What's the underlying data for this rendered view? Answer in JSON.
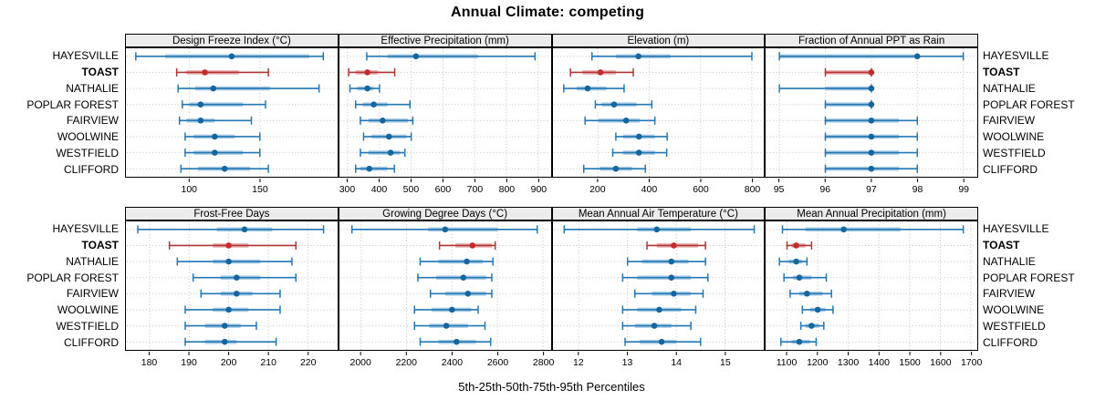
{
  "title": "Annual Climate: competing",
  "caption": "5th-25th-50th-75th-95th Percentiles",
  "locations": [
    "HAYESVILLE",
    "TOAST",
    "NATHALIE",
    "POPLAR FOREST",
    "FAIRVIEW",
    "WOOLWINE",
    "WESTFIELD",
    "CLIFFORD"
  ],
  "highlight_location": "TOAST",
  "percentile_labels": [
    "5th",
    "25th",
    "50th",
    "75th",
    "95th"
  ],
  "colors": {
    "line": "#2277b4",
    "band": "#a9cce4",
    "dot": "#15669f",
    "highlight_line": "#b23535",
    "highlight_band": "#e9aeae",
    "highlight_dot": "#c42b2b",
    "strip_bg": "#ececec",
    "grid": "#c3c3c3",
    "border": "#000000"
  },
  "chart_data": [
    {
      "type": "scatter",
      "representation": "percentile-intervals",
      "row": 0,
      "title": "Design Freeze Index (°C)",
      "xlim": [
        55,
        205
      ],
      "ticks": [
        100,
        150
      ],
      "series": [
        {
          "name": "HAYESVILLE",
          "values": [
            62,
            83,
            130,
            185,
            195
          ]
        },
        {
          "name": "TOAST",
          "values": [
            91,
            98,
            111,
            135,
            156
          ]
        },
        {
          "name": "NATHALIE",
          "values": [
            92,
            104,
            117,
            157,
            192
          ]
        },
        {
          "name": "POPLAR FOREST",
          "values": [
            95,
            100,
            108,
            138,
            154
          ]
        },
        {
          "name": "FAIRVIEW",
          "values": [
            93,
            98,
            108,
            118,
            144
          ]
        },
        {
          "name": "WOOLWINE",
          "values": [
            97,
            103,
            118,
            132,
            150
          ]
        },
        {
          "name": "WESTFIELD",
          "values": [
            97,
            103,
            118,
            138,
            150
          ]
        },
        {
          "name": "CLIFFORD",
          "values": [
            94,
            106,
            125,
            143,
            156
          ]
        }
      ]
    },
    {
      "type": "scatter",
      "representation": "percentile-intervals",
      "row": 0,
      "title": "Effective Precipitation (mm)",
      "xlim": [
        274,
        940
      ],
      "ticks": [
        300,
        400,
        500,
        600,
        700,
        800,
        900
      ],
      "series": [
        {
          "name": "HAYESVILLE",
          "values": [
            360,
            425,
            515,
            710,
            890
          ]
        },
        {
          "name": "TOAST",
          "values": [
            303,
            325,
            362,
            395,
            448
          ]
        },
        {
          "name": "NATHALIE",
          "values": [
            307,
            330,
            362,
            382,
            400
          ]
        },
        {
          "name": "POPLAR FOREST",
          "values": [
            325,
            347,
            382,
            425,
            496
          ]
        },
        {
          "name": "FAIRVIEW",
          "values": [
            340,
            365,
            410,
            490,
            505
          ]
        },
        {
          "name": "WOOLWINE",
          "values": [
            350,
            375,
            430,
            485,
            500
          ]
        },
        {
          "name": "WESTFIELD",
          "values": [
            340,
            365,
            435,
            465,
            480
          ]
        },
        {
          "name": "CLIFFORD",
          "values": [
            325,
            340,
            368,
            425,
            447
          ]
        }
      ]
    },
    {
      "type": "scatter",
      "representation": "percentile-intervals",
      "row": 0,
      "title": "Elevation (m)",
      "xlim": [
        25,
        849
      ],
      "ticks": [
        200,
        400,
        600,
        800
      ],
      "series": [
        {
          "name": "HAYESVILLE",
          "values": [
            177,
            270,
            358,
            483,
            800
          ]
        },
        {
          "name": "TOAST",
          "values": [
            93,
            140,
            210,
            270,
            338
          ]
        },
        {
          "name": "NATHALIE",
          "values": [
            67,
            118,
            160,
            233,
            302
          ]
        },
        {
          "name": "POPLAR FOREST",
          "values": [
            190,
            215,
            263,
            350,
            410
          ]
        },
        {
          "name": "FAIRVIEW",
          "values": [
            150,
            202,
            310,
            363,
            422
          ]
        },
        {
          "name": "WOOLWINE",
          "values": [
            270,
            298,
            360,
            422,
            470
          ]
        },
        {
          "name": "WESTFIELD",
          "values": [
            258,
            298,
            360,
            422,
            468
          ]
        },
        {
          "name": "CLIFFORD",
          "values": [
            145,
            208,
            270,
            333,
            385
          ]
        }
      ]
    },
    {
      "type": "scatter",
      "representation": "percentile-intervals",
      "row": 0,
      "title": "Fraction of Annual PPT as Rain",
      "xlim": [
        94.7,
        99.3
      ],
      "ticks": [
        95,
        96,
        97,
        98,
        99
      ],
      "series": [
        {
          "name": "HAYESVILLE",
          "values": [
            95,
            95,
            98,
            98,
            99
          ]
        },
        {
          "name": "TOAST",
          "values": [
            96,
            96,
            97,
            97,
            97
          ]
        },
        {
          "name": "NATHALIE",
          "values": [
            95,
            96,
            97,
            97,
            97
          ]
        },
        {
          "name": "POPLAR FOREST",
          "values": [
            96,
            96,
            97,
            97,
            97
          ]
        },
        {
          "name": "FAIRVIEW",
          "values": [
            96,
            96,
            97,
            97.6,
            98
          ]
        },
        {
          "name": "WOOLWINE",
          "values": [
            96,
            96,
            97,
            97.6,
            98
          ]
        },
        {
          "name": "WESTFIELD",
          "values": [
            96,
            96,
            97,
            97.6,
            98
          ]
        },
        {
          "name": "CLIFFORD",
          "values": [
            96,
            96,
            97,
            97.6,
            98
          ]
        }
      ]
    },
    {
      "type": "scatter",
      "representation": "percentile-intervals",
      "row": 1,
      "title": "Frost-Free Days",
      "xlim": [
        174,
        227.5
      ],
      "ticks": [
        180,
        190,
        200,
        210,
        220
      ],
      "series": [
        {
          "name": "HAYESVILLE",
          "values": [
            177,
            197,
            204,
            211,
            224
          ]
        },
        {
          "name": "TOAST",
          "values": [
            185,
            196,
            200,
            205,
            217
          ]
        },
        {
          "name": "NATHALIE",
          "values": [
            187,
            196,
            200,
            208,
            216
          ]
        },
        {
          "name": "POPLAR FOREST",
          "values": [
            191,
            198,
            202,
            208,
            217
          ]
        },
        {
          "name": "FAIRVIEW",
          "values": [
            193,
            198,
            202,
            206,
            213
          ]
        },
        {
          "name": "WOOLWINE",
          "values": [
            189,
            196,
            200,
            205,
            213
          ]
        },
        {
          "name": "WESTFIELD",
          "values": [
            189,
            194,
            199,
            203,
            207
          ]
        },
        {
          "name": "CLIFFORD",
          "values": [
            189,
            194,
            199,
            202,
            212
          ]
        }
      ]
    },
    {
      "type": "scatter",
      "representation": "percentile-intervals",
      "row": 1,
      "title": "Growing Degree Days (°C)",
      "xlim": [
        1905,
        2835
      ],
      "ticks": [
        2000,
        2200,
        2400,
        2600,
        2800
      ],
      "series": [
        {
          "name": "HAYESVILLE",
          "values": [
            1960,
            2295,
            2370,
            2600,
            2775
          ]
        },
        {
          "name": "TOAST",
          "values": [
            2345,
            2415,
            2490,
            2575,
            2590
          ]
        },
        {
          "name": "NATHALIE",
          "values": [
            2260,
            2340,
            2465,
            2535,
            2580
          ]
        },
        {
          "name": "POPLAR FOREST",
          "values": [
            2250,
            2330,
            2450,
            2550,
            2575
          ]
        },
        {
          "name": "FAIRVIEW",
          "values": [
            2305,
            2370,
            2470,
            2550,
            2575
          ]
        },
        {
          "name": "WOOLWINE",
          "values": [
            2235,
            2310,
            2400,
            2485,
            2515
          ]
        },
        {
          "name": "WESTFIELD",
          "values": [
            2235,
            2300,
            2375,
            2470,
            2545
          ]
        },
        {
          "name": "CLIFFORD",
          "values": [
            2260,
            2340,
            2420,
            2505,
            2570
          ]
        }
      ]
    },
    {
      "type": "scatter",
      "representation": "percentile-intervals",
      "row": 1,
      "title": "Mean Annual Air Temperature (°C)",
      "xlim": [
        11.47,
        15.81
      ],
      "ticks": [
        12,
        13,
        14,
        15
      ],
      "series": [
        {
          "name": "HAYESVILLE",
          "values": [
            11.7,
            13.2,
            13.6,
            14.3,
            15.6
          ]
        },
        {
          "name": "TOAST",
          "values": [
            13.4,
            13.6,
            13.95,
            14.45,
            14.6
          ]
        },
        {
          "name": "NATHALIE",
          "values": [
            13.0,
            13.3,
            13.9,
            14.25,
            14.6
          ]
        },
        {
          "name": "POPLAR FOREST",
          "values": [
            12.9,
            13.2,
            13.9,
            14.3,
            14.65
          ]
        },
        {
          "name": "FAIRVIEW",
          "values": [
            13.15,
            13.5,
            13.95,
            14.3,
            14.55
          ]
        },
        {
          "name": "WOOLWINE",
          "values": [
            12.9,
            13.2,
            13.65,
            14.1,
            14.4
          ]
        },
        {
          "name": "WESTFIELD",
          "values": [
            12.9,
            13.15,
            13.55,
            13.9,
            14.3
          ]
        },
        {
          "name": "CLIFFORD",
          "values": [
            12.95,
            13.25,
            13.7,
            14.0,
            14.5
          ]
        }
      ]
    },
    {
      "type": "scatter",
      "representation": "percentile-intervals",
      "row": 1,
      "title": "Mean Annual Precipitation (mm)",
      "xlim": [
        1030,
        1720
      ],
      "ticks": [
        1100,
        1200,
        1300,
        1400,
        1500,
        1600,
        1700
      ],
      "series": [
        {
          "name": "HAYESVILLE",
          "values": [
            1085,
            1160,
            1285,
            1470,
            1675
          ]
        },
        {
          "name": "TOAST",
          "values": [
            1100,
            1115,
            1130,
            1160,
            1180
          ]
        },
        {
          "name": "NATHALIE",
          "values": [
            1075,
            1105,
            1130,
            1150,
            1165
          ]
        },
        {
          "name": "POPLAR FOREST",
          "values": [
            1090,
            1120,
            1140,
            1180,
            1228
          ]
        },
        {
          "name": "FAIRVIEW",
          "values": [
            1110,
            1140,
            1165,
            1215,
            1245
          ]
        },
        {
          "name": "WOOLWINE",
          "values": [
            1150,
            1175,
            1200,
            1225,
            1250
          ]
        },
        {
          "name": "WESTFIELD",
          "values": [
            1145,
            1160,
            1180,
            1205,
            1220
          ]
        },
        {
          "name": "CLIFFORD",
          "values": [
            1080,
            1115,
            1140,
            1175,
            1195
          ]
        }
      ]
    }
  ]
}
